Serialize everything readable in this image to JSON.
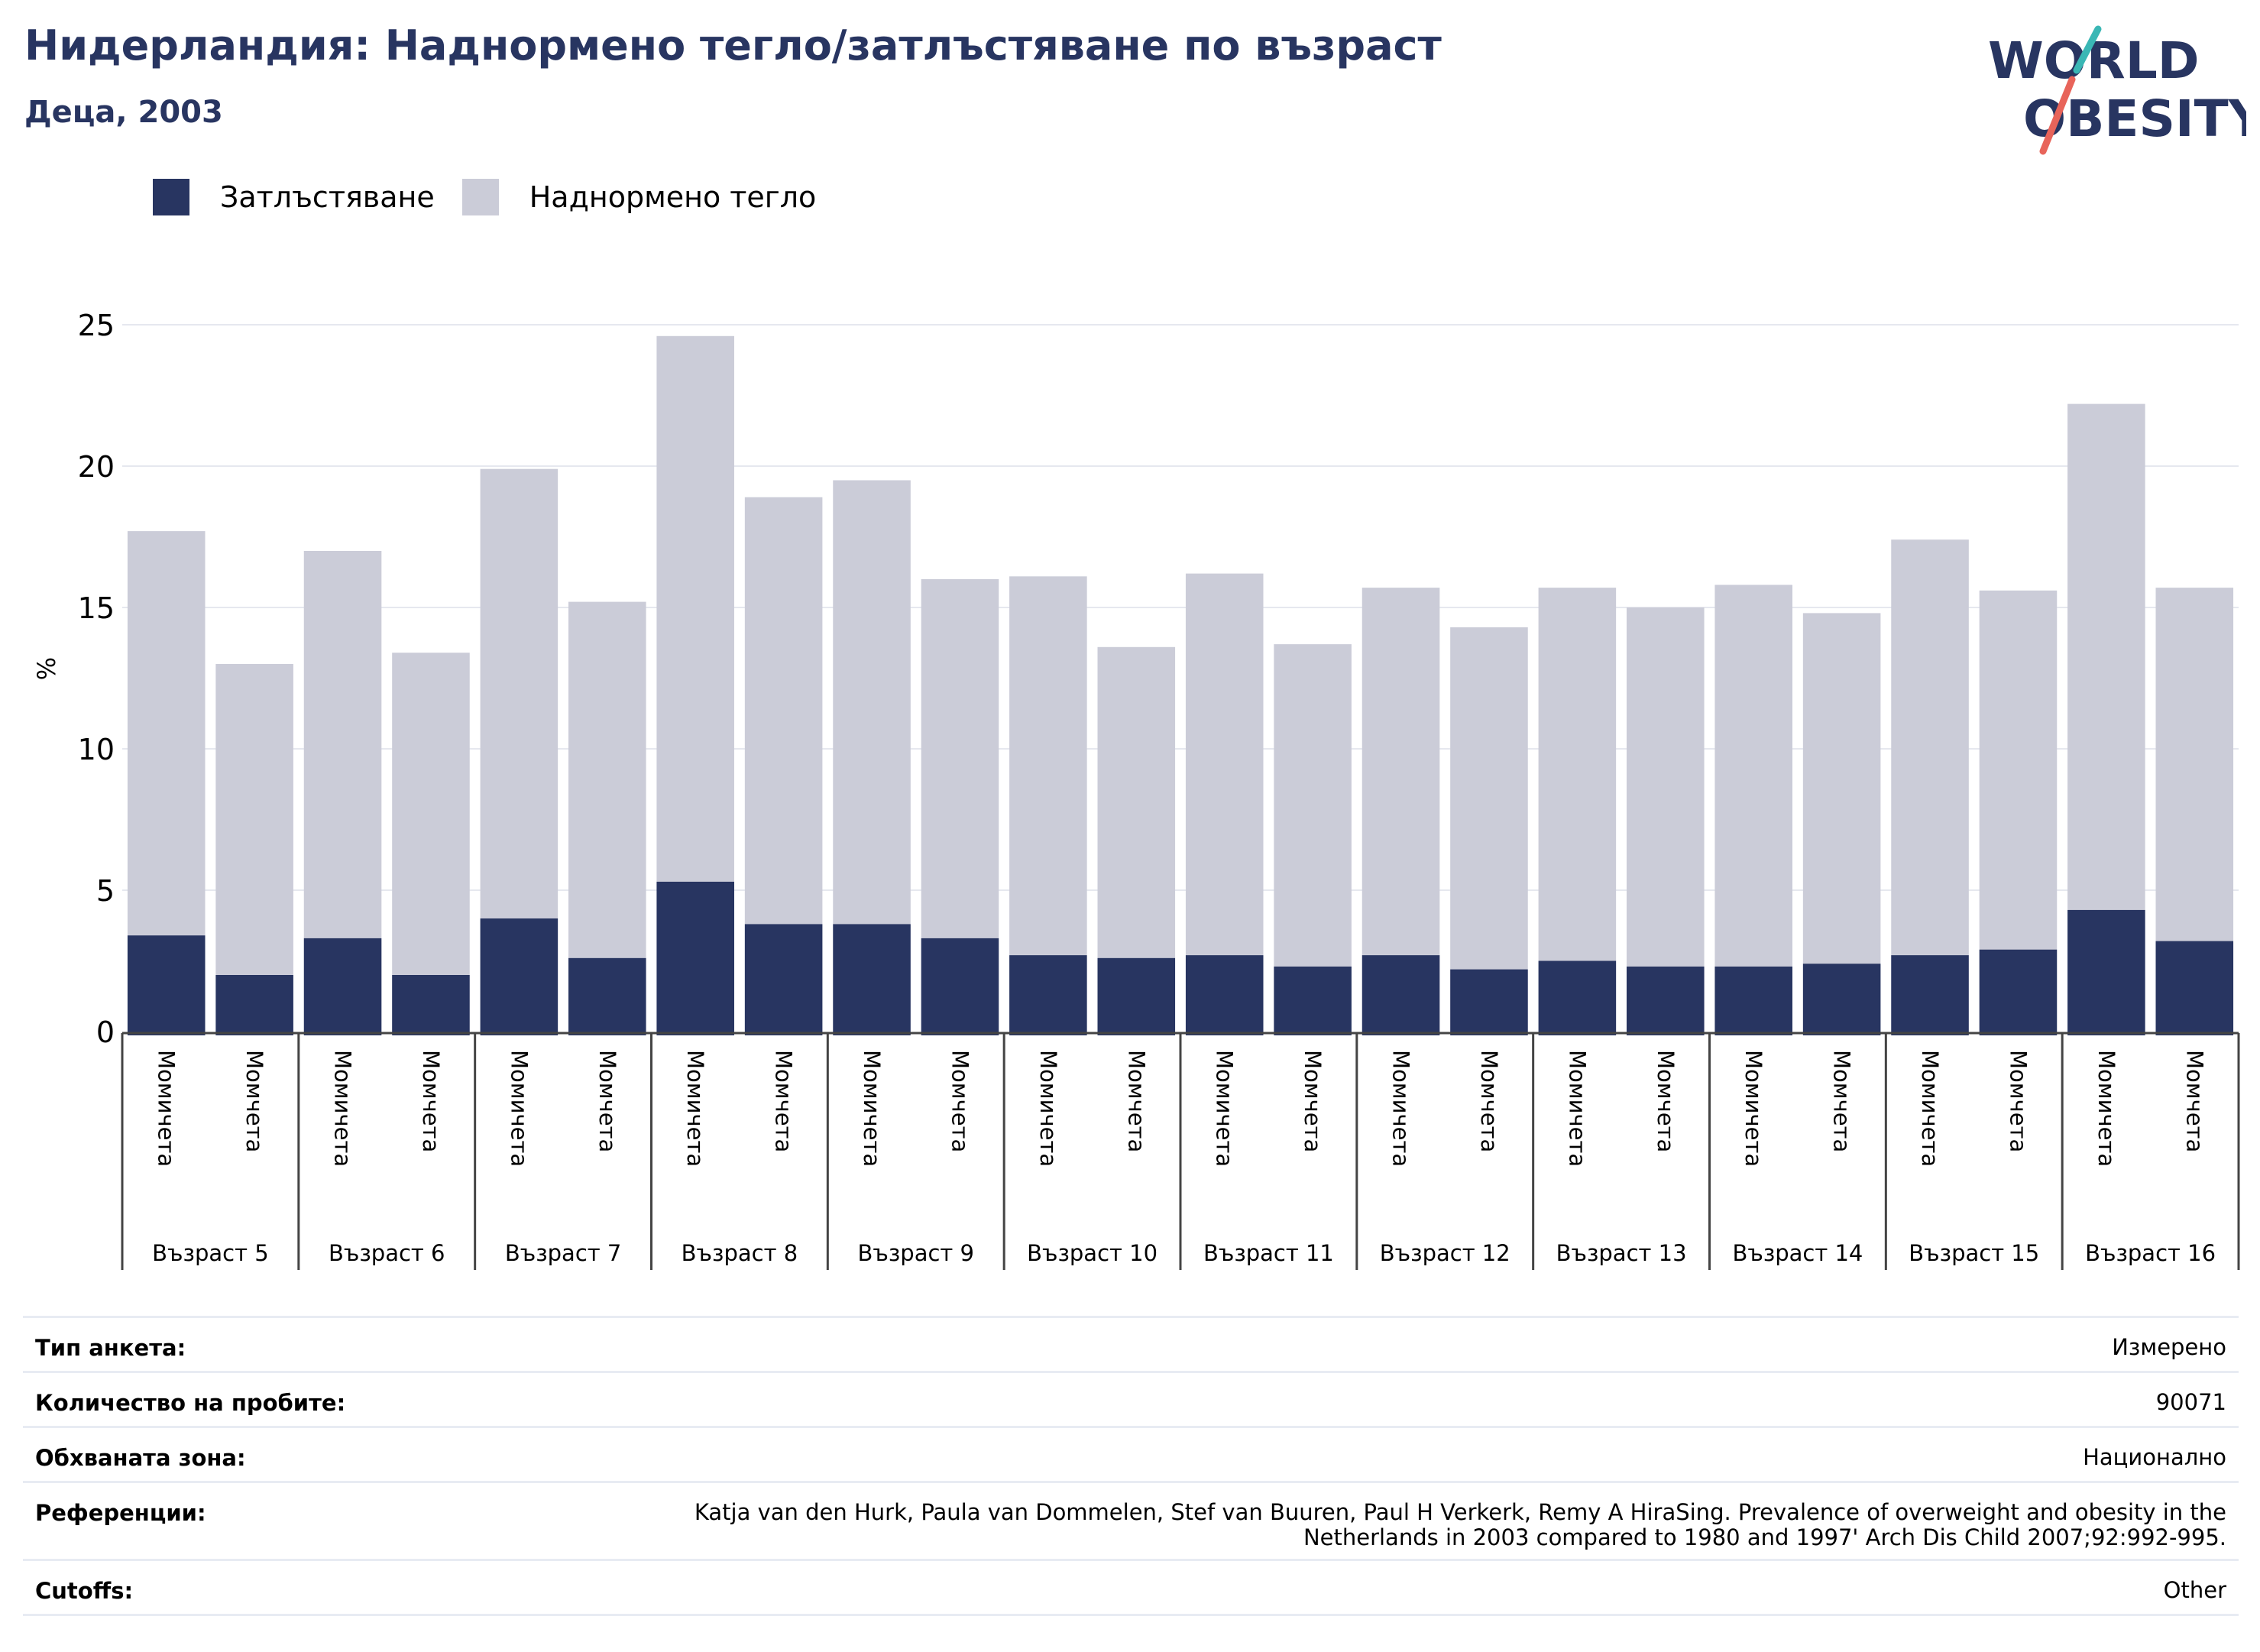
{
  "header": {
    "title": "Нидерландия: Наднормено тегло/затлъстяване по възраст",
    "subtitle": "Деца, 2003"
  },
  "logo": {
    "line1": "WORLD",
    "line2": "OBESITY"
  },
  "legend": [
    {
      "label": "Затлъстяване",
      "color": "#283561"
    },
    {
      "label": "Наднормено тегло",
      "color": "#cbccd8"
    }
  ],
  "chart_data": {
    "type": "bar",
    "stacked": true,
    "ylabel": "%",
    "ylim": [
      0,
      25
    ],
    "yticks": [
      0,
      5,
      10,
      15,
      20,
      25
    ],
    "grid": true,
    "groups": [
      "Възраст 5",
      "Възраст 6",
      "Възраст 7",
      "Възраст 8",
      "Възраст 9",
      "Възраст 10",
      "Възраст 11",
      "Възраст 12",
      "Възраст 13",
      "Възраст 14",
      "Възраст 15",
      "Възраст 16"
    ],
    "subcategories": [
      "Момичета",
      "Момчета"
    ],
    "series": [
      {
        "name": "Затлъстяване",
        "color": "#283561",
        "values": [
          3.4,
          2.0,
          3.3,
          2.0,
          4.0,
          2.6,
          5.3,
          3.8,
          3.8,
          3.3,
          2.7,
          2.6,
          2.7,
          2.3,
          2.7,
          2.2,
          2.5,
          2.3,
          2.3,
          2.4,
          2.7,
          2.9,
          4.3,
          3.2
        ]
      },
      {
        "name": "Наднормено тегло",
        "color": "#cbccd8",
        "values": [
          14.3,
          11.0,
          13.7,
          11.4,
          15.9,
          12.6,
          19.3,
          15.1,
          15.7,
          12.7,
          13.4,
          11.0,
          13.5,
          11.4,
          13.0,
          12.1,
          13.2,
          12.7,
          13.5,
          12.4,
          14.7,
          12.7,
          17.9,
          12.5
        ]
      }
    ]
  },
  "info": {
    "survey_type_label": "Тип анкета:",
    "survey_type_value": "Измерено",
    "sample_size_label": "Количество на пробите:",
    "sample_size_value": "90071",
    "area_label": "Обхваната зона:",
    "area_value": "Национално",
    "references_label": "Референции:",
    "references_line1": "Katja van den Hurk, Paula van Dommelen, Stef van Buuren, Paul H Verkerk, Remy A HiraSing. Prevalence of overweight and obesity in the",
    "references_line2": "Netherlands in 2003 compared to 1980 and 1997' Arch Dis Child 2007;92:992-995.",
    "cutoffs_label": "Cutoffs:",
    "cutoffs_value": "Other"
  }
}
